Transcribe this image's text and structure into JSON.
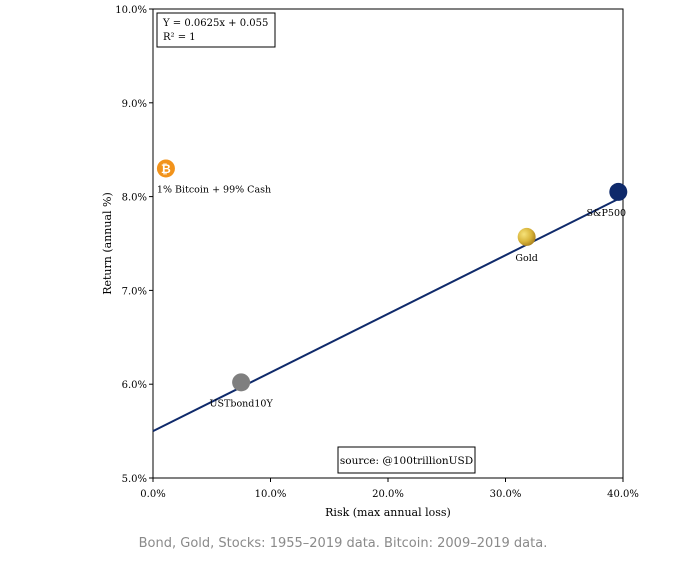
{
  "chart_data": {
    "type": "scatter",
    "xlabel": "Risk (max annual loss)",
    "ylabel": "Return (annual %)",
    "xlim": [
      0,
      40
    ],
    "ylim": [
      5.0,
      10.0
    ],
    "x_ticks": [
      "0.0%",
      "10.0%",
      "20.0%",
      "30.0%",
      "40.0%"
    ],
    "x_tick_values": [
      0,
      10,
      20,
      30,
      40
    ],
    "y_ticks": [
      "5.0%",
      "6.0%",
      "7.0%",
      "8.0%",
      "9.0%",
      "10.0%"
    ],
    "y_tick_values": [
      5,
      6,
      7,
      8,
      9,
      10
    ],
    "grid": false,
    "trendline": {
      "slope": 0.0625,
      "intercept": 5.5,
      "x_range": [
        0,
        40
      ]
    },
    "equation_box": {
      "line1": "Y = 0.0625x + 0.055",
      "line2": "R² = 1"
    },
    "source_box": "source: @100trillionUSD",
    "points": [
      {
        "label": "USTbond10Y",
        "x": 7.5,
        "y": 6.02,
        "color": "#7f7f7f",
        "icon": "circle"
      },
      {
        "label": "Gold",
        "x": 31.8,
        "y": 7.57,
        "color": "#d8b43a",
        "icon": "circle"
      },
      {
        "label": "S&P500",
        "x": 39.6,
        "y": 8.05,
        "color": "#0f2a6b",
        "icon": "circle"
      },
      {
        "label": "1% Bitcoin + 99% Cash",
        "x": 1.1,
        "y": 8.3,
        "color": "#f2931b",
        "icon": "bitcoin-icon",
        "glyph": "₿"
      }
    ]
  },
  "caption": "Bond, Gold, Stocks: 1955–2019 data. Bitcoin: 2009–2019 data."
}
